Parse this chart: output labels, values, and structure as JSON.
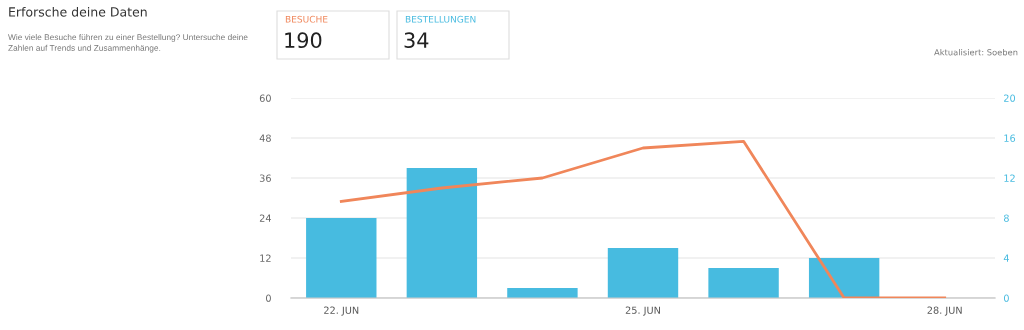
{
  "chart_data": {
    "type": "bar",
    "title": "Erforsche deine Daten",
    "subtitle": "Wie viele Besuche führen zu einer Bestellung? Untersuche deine\nZahlen auf Trends und Zusammenhänge.",
    "categories": [
      "22. JUN",
      null,
      null,
      "25. JUN",
      null,
      null,
      "28. JUN"
    ],
    "series": [
      {
        "name": "BESUCHE",
        "type": "line",
        "color": "#f0865a",
        "values": [
          29,
          33,
          36,
          45,
          47,
          0,
          0
        ]
      },
      {
        "name": "BESTELLUNGEN",
        "axis": "y2",
        "color": "#47bbe0",
        "values": [
          8,
          13,
          1,
          5,
          3,
          4,
          null
        ]
      }
    ],
    "ylim": [
      0,
      60
    ],
    "yticks": [
      0,
      12,
      24,
      36,
      48,
      60
    ],
    "y2lim": [
      0,
      20
    ],
    "y2ticks": [
      0,
      4,
      8,
      12,
      16,
      20
    ],
    "grid": "y",
    "legend": false,
    "annotations": [
      "190",
      "34",
      "Aktualisiert: Soeben"
    ]
  }
}
